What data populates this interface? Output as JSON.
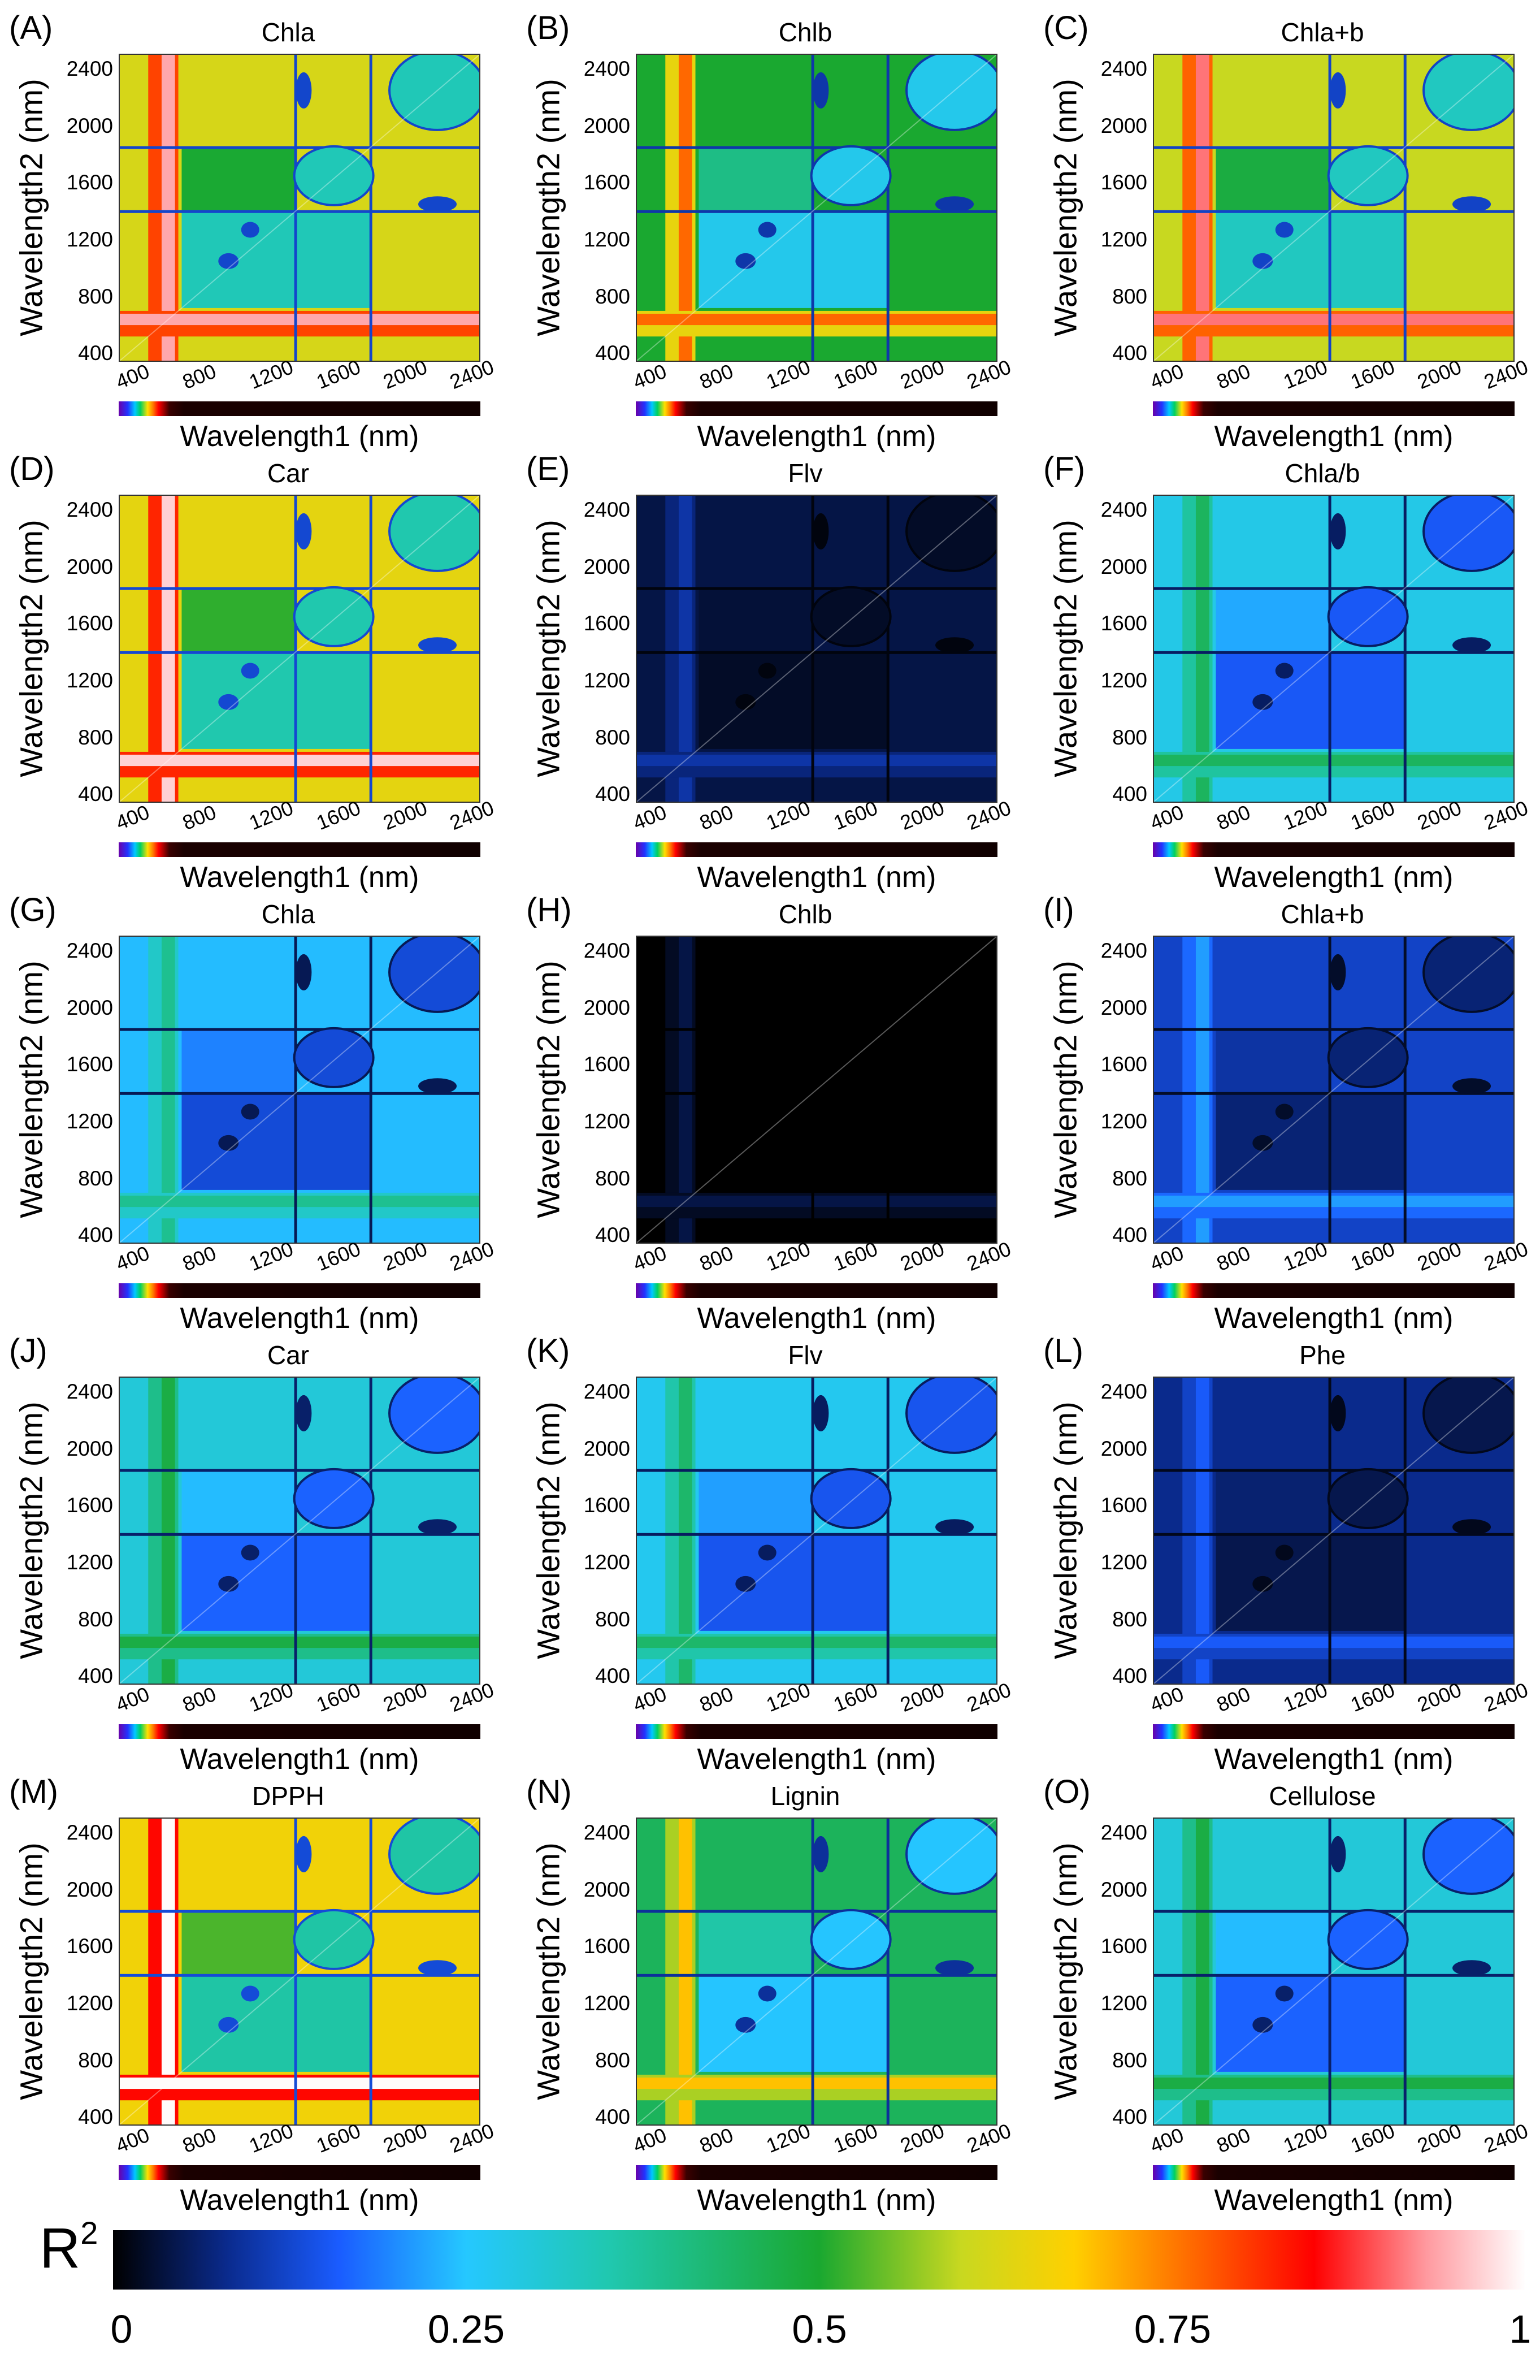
{
  "chart_data": [
    {
      "type": "heatmap",
      "letter": "(A)",
      "title": "Chla",
      "brightness": 0.62,
      "xlabel": "Wavelength1 (nm)",
      "ylabel": "Wavelength2 (nm)",
      "xlim": [
        350,
        2500
      ],
      "ylim": [
        350,
        2500
      ]
    },
    {
      "type": "heatmap",
      "letter": "(B)",
      "title": "Chlb",
      "brightness": 0.5,
      "xlabel": "Wavelength1 (nm)",
      "ylabel": "Wavelength2 (nm)",
      "xlim": [
        350,
        2500
      ],
      "ylim": [
        350,
        2500
      ]
    },
    {
      "type": "heatmap",
      "letter": "(C)",
      "title": "Chla+b",
      "brightness": 0.6,
      "xlabel": "Wavelength1 (nm)",
      "ylabel": "Wavelength2 (nm)",
      "xlim": [
        350,
        2500
      ],
      "ylim": [
        350,
        2500
      ]
    },
    {
      "type": "heatmap",
      "letter": "(D)",
      "title": "Car",
      "brightness": 0.64,
      "xlabel": "Wavelength1 (nm)",
      "ylabel": "Wavelength2 (nm)",
      "xlim": [
        350,
        2500
      ],
      "ylim": [
        350,
        2500
      ]
    },
    {
      "type": "heatmap",
      "letter": "(E)",
      "title": "Flv",
      "brightness": 0.04,
      "xlabel": "Wavelength1 (nm)",
      "ylabel": "Wavelength2 (nm)",
      "xlim": [
        350,
        2500
      ],
      "ylim": [
        350,
        2500
      ]
    },
    {
      "type": "heatmap",
      "letter": "(F)",
      "title": "Chla/b",
      "brightness": 0.28,
      "xlabel": "Wavelength1 (nm)",
      "ylabel": "Wavelength2 (nm)",
      "xlim": [
        350,
        2500
      ],
      "ylim": [
        350,
        2500
      ]
    },
    {
      "type": "heatmap",
      "letter": "(G)",
      "title": "Chla",
      "brightness": 0.24,
      "xlabel": "Wavelength1 (nm)",
      "ylabel": "Wavelength2 (nm)",
      "xlim": [
        350,
        2500
      ],
      "ylim": [
        350,
        2500
      ]
    },
    {
      "type": "heatmap",
      "letter": "(H)",
      "title": "Chlb",
      "brightness": 0.0,
      "xlabel": "Wavelength1 (nm)",
      "ylabel": "Wavelength2 (nm)",
      "xlim": [
        350,
        2500
      ],
      "ylim": [
        350,
        2500
      ]
    },
    {
      "type": "heatmap",
      "letter": "(I)",
      "title": "Chla+b",
      "brightness": 0.12,
      "xlabel": "Wavelength1 (nm)",
      "ylabel": "Wavelength2 (nm)",
      "xlim": [
        350,
        2500
      ],
      "ylim": [
        350,
        2500
      ]
    },
    {
      "type": "heatmap",
      "letter": "(J)",
      "title": "Car",
      "brightness": 0.3,
      "xlabel": "Wavelength1 (nm)",
      "ylabel": "Wavelength2 (nm)",
      "xlim": [
        350,
        2500
      ],
      "ylim": [
        350,
        2500
      ]
    },
    {
      "type": "heatmap",
      "letter": "(K)",
      "title": "Flv",
      "brightness": 0.27,
      "xlabel": "Wavelength1 (nm)",
      "ylabel": "Wavelength2 (nm)",
      "xlim": [
        350,
        2500
      ],
      "ylim": [
        350,
        2500
      ]
    },
    {
      "type": "heatmap",
      "letter": "(L)",
      "title": "Phe",
      "brightness": 0.08,
      "xlabel": "Wavelength1 (nm)",
      "ylabel": "Wavelength2 (nm)",
      "xlim": [
        350,
        2500
      ],
      "ylim": [
        350,
        2500
      ]
    },
    {
      "type": "heatmap",
      "letter": "(M)",
      "title": "DPPH",
      "brightness": 0.66,
      "xlabel": "Wavelength1 (nm)",
      "ylabel": "Wavelength2 (nm)",
      "xlim": [
        350,
        2500
      ],
      "ylim": [
        350,
        2500
      ]
    },
    {
      "type": "heatmap",
      "letter": "(N)",
      "title": "Lignin",
      "brightness": 0.45,
      "xlabel": "Wavelength1 (nm)",
      "ylabel": "Wavelength2 (nm)",
      "xlim": [
        350,
        2500
      ],
      "ylim": [
        350,
        2500
      ]
    },
    {
      "type": "heatmap",
      "letter": "(O)",
      "title": "Cellulose",
      "brightness": 0.3,
      "xlabel": "Wavelength1 (nm)",
      "ylabel": "Wavelength2 (nm)",
      "xlim": [
        350,
        2500
      ],
      "ylim": [
        350,
        2500
      ]
    }
  ],
  "axis_ticks": {
    "x": [
      400,
      800,
      1200,
      1600,
      2000,
      2400
    ],
    "y": [
      2400,
      2000,
      1600,
      1200,
      800,
      400
    ]
  },
  "colorbar": {
    "title": "R",
    "title_superscript": "2",
    "ticks": [
      {
        "label": "0",
        "value": 0
      },
      {
        "label": "0.25",
        "value": 0.25
      },
      {
        "label": "0.5",
        "value": 0.5
      },
      {
        "label": "0.75",
        "value": 0.75
      },
      {
        "label": "1",
        "value": 1
      }
    ]
  }
}
